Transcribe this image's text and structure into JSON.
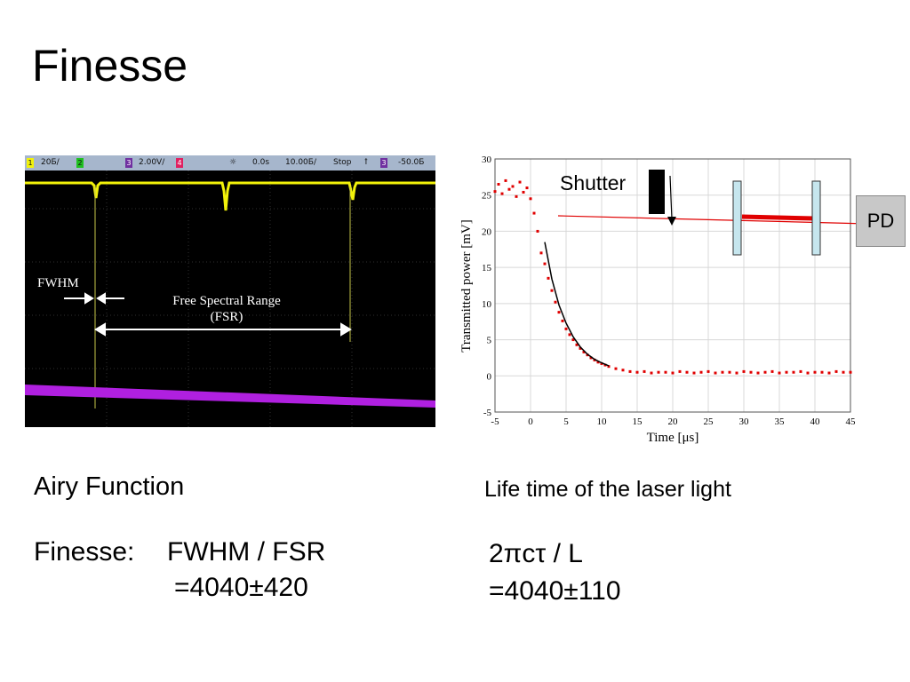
{
  "slide": {
    "title": "Finesse",
    "airy_caption": "Airy Function",
    "lifetime_caption": "Life time of the laser light",
    "finesse_label": "Finesse:",
    "finesse_formula": "FWHM / FSR",
    "finesse_value": "=4040±420",
    "lifetime_formula": "2πcτ / L",
    "lifetime_value": "=4040±110"
  },
  "scope": {
    "status_bar": {
      "ch1": "1",
      "ch1_scale": "20Б/",
      "ch2": "2",
      "ch3": "3",
      "ch3_scale": "2.00V/",
      "ch4": "4",
      "delay": "0.0s",
      "time_scale": "10.00Б/",
      "run_state": "Stop",
      "trig_channel": "3",
      "trig_level": "-50.0Б"
    },
    "annotations": {
      "fwhm": "FWHM",
      "fsr_line1": "Free Spectral Range",
      "fsr_line2": "(FSR)"
    },
    "colors": {
      "trace_transmission": "#f2f20a",
      "trace_ramp": "#b020e0",
      "arrows": "#ffffff"
    }
  },
  "setup": {
    "shutter_label": "Shutter",
    "pd_label": "PD",
    "beam_color": "#e00000"
  },
  "chart_data": {
    "type": "scatter",
    "title": "",
    "xlabel": "Time [μs]",
    "ylabel": "Transmitted power [mV]",
    "xlim": [
      -5,
      45
    ],
    "ylim": [
      -5,
      30
    ],
    "xticks": [
      -5,
      0,
      5,
      10,
      15,
      20,
      25,
      30,
      35,
      40,
      45
    ],
    "yticks": [
      -5,
      0,
      5,
      10,
      15,
      20,
      25,
      30
    ],
    "grid": true,
    "series": [
      {
        "kind": "points",
        "color": "#e00000",
        "x": [
          -5,
          -4.5,
          -4,
          -3.5,
          -3,
          -2.5,
          -2,
          -1.5,
          -1,
          -0.5,
          0,
          0.5,
          1,
          1.5,
          2,
          2.5,
          3,
          3.5,
          4,
          4.5,
          5,
          5.5,
          6,
          6.5,
          7,
          7.5,
          8,
          8.5,
          9,
          9.5,
          10,
          10.5,
          11,
          12,
          13,
          14,
          15,
          16,
          17,
          18,
          19,
          20,
          21,
          22,
          23,
          24,
          25,
          26,
          27,
          28,
          29,
          30,
          31,
          32,
          33,
          34,
          35,
          36,
          37,
          38,
          39,
          40,
          41,
          42,
          43,
          44,
          45
        ],
        "y": [
          25.5,
          26.5,
          25.2,
          27.0,
          25.8,
          26.2,
          24.8,
          26.8,
          25.4,
          26.0,
          24.5,
          22.5,
          20.0,
          17.0,
          15.5,
          13.5,
          11.8,
          10.2,
          8.8,
          7.6,
          6.5,
          5.7,
          5.0,
          4.3,
          3.8,
          3.3,
          2.9,
          2.5,
          2.2,
          1.9,
          1.7,
          1.5,
          1.3,
          1.0,
          0.8,
          0.6,
          0.5,
          0.6,
          0.4,
          0.5,
          0.5,
          0.4,
          0.6,
          0.5,
          0.4,
          0.5,
          0.6,
          0.4,
          0.5,
          0.5,
          0.4,
          0.6,
          0.5,
          0.4,
          0.5,
          0.6,
          0.4,
          0.5,
          0.5,
          0.6,
          0.4,
          0.5,
          0.5,
          0.4,
          0.6,
          0.5,
          0.5
        ]
      },
      {
        "kind": "fit",
        "color": "#000000",
        "x": [
          2,
          3,
          4,
          5,
          6,
          7,
          8,
          9,
          10,
          11
        ],
        "y": [
          18.5,
          13.4,
          9.8,
          7.3,
          5.4,
          4.0,
          3.0,
          2.3,
          1.8,
          1.4
        ]
      }
    ]
  }
}
